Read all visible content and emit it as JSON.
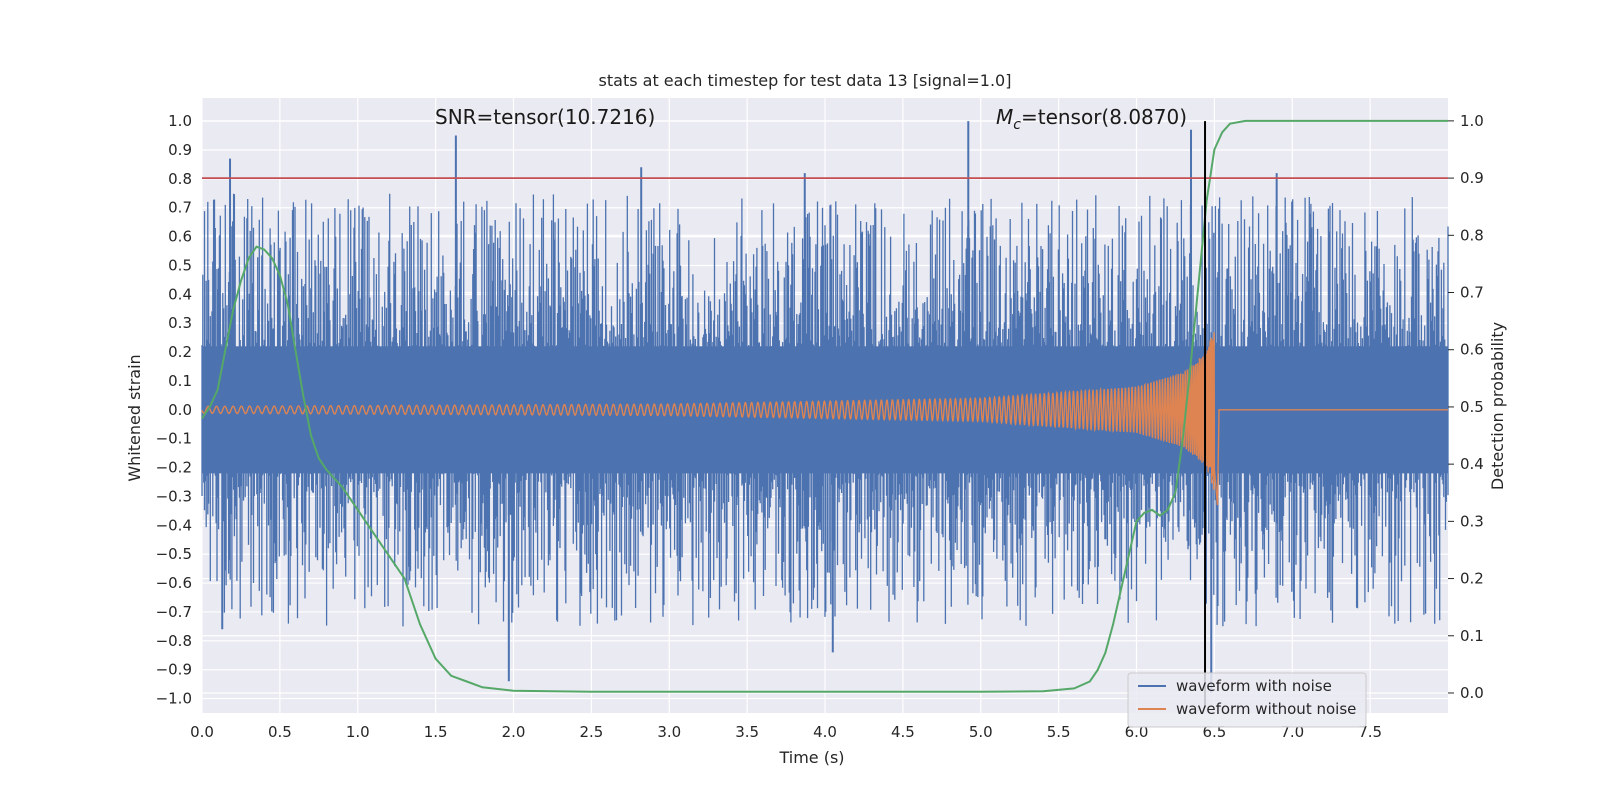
{
  "chart_data": {
    "type": "line",
    "title": "stats at each timestep for test data 13 [signal=1.0]",
    "xlabel": "Time (s)",
    "ylabel": "Whitened strain",
    "y2label": "Detection probability",
    "xlim": [
      0.0,
      8.0
    ],
    "ylim": [
      -1.05,
      1.08
    ],
    "y2lim": [
      -0.035,
      1.04
    ],
    "x_ticks": [
      0.0,
      0.5,
      1.0,
      1.5,
      2.0,
      2.5,
      3.0,
      3.5,
      4.0,
      4.5,
      5.0,
      5.5,
      6.0,
      6.5,
      7.0,
      7.5
    ],
    "x_tick_labels": [
      "0.0",
      "0.5",
      "1.0",
      "1.5",
      "2.0",
      "2.5",
      "3.0",
      "3.5",
      "4.0",
      "4.5",
      "5.0",
      "5.5",
      "6.0",
      "6.5",
      "7.0",
      "7.5"
    ],
    "y_ticks": [
      1.0,
      0.9,
      0.8,
      0.7,
      0.6,
      0.5,
      0.4,
      0.3,
      0.2,
      0.1,
      0.0,
      -0.1,
      -0.2,
      -0.3,
      -0.4,
      -0.5,
      -0.6,
      -0.7,
      -0.8,
      -0.9,
      -1.0
    ],
    "y_tick_labels": [
      "1.0",
      "0.9",
      "0.8",
      "0.7",
      "0.6",
      "0.5",
      "0.4",
      "0.3",
      "0.2",
      "0.1",
      "0.0",
      "−0.1",
      "−0.2",
      "−0.3",
      "−0.4",
      "−0.5",
      "−0.6",
      "−0.7",
      "−0.8",
      "−0.9",
      "−1.0"
    ],
    "y2_ticks": [
      1.0,
      0.9,
      0.8,
      0.7,
      0.6,
      0.5,
      0.4,
      0.3,
      0.2,
      0.1,
      0.0
    ],
    "y2_tick_labels": [
      "1.0",
      "0.9",
      "0.8",
      "0.7",
      "0.6",
      "0.5",
      "0.4",
      "0.3",
      "0.2",
      "0.1",
      "0.0"
    ],
    "grid": true,
    "legend_position": "bottom-right",
    "series": [
      {
        "name": "waveform with noise",
        "color": "#4c72b0",
        "axis": "left",
        "description_values": {
          "duration_s": 8.0,
          "core_band": [
            -0.2,
            0.2
          ],
          "peak_spikes": [
            {
              "x": 0.18,
              "y": 0.87
            },
            {
              "x": 1.63,
              "y": 0.95
            },
            {
              "x": 2.82,
              "y": 0.84
            },
            {
              "x": 3.87,
              "y": 0.82
            },
            {
              "x": 4.92,
              "y": 1.0
            },
            {
              "x": 6.35,
              "y": 0.97
            },
            {
              "x": 6.9,
              "y": 0.82
            },
            {
              "x": 1.97,
              "y": -0.94
            },
            {
              "x": 4.05,
              "y": -0.84
            },
            {
              "x": 0.13,
              "y": -0.76
            },
            {
              "x": 6.48,
              "y": -0.98
            }
          ]
        }
      },
      {
        "name": "waveform without noise",
        "color": "#dd8452",
        "axis": "left",
        "merger_time": 6.5,
        "amplitude_envelope": [
          [
            0.0,
            0.012
          ],
          [
            3.0,
            0.02
          ],
          [
            5.0,
            0.04
          ],
          [
            6.0,
            0.08
          ],
          [
            6.3,
            0.13
          ],
          [
            6.45,
            0.2
          ],
          [
            6.5,
            0.29
          ]
        ]
      },
      {
        "name": "detection probability",
        "color": "#55a868",
        "axis": "right",
        "x": [
          0.0,
          0.05,
          0.1,
          0.15,
          0.2,
          0.25,
          0.3,
          0.35,
          0.4,
          0.45,
          0.5,
          0.55,
          0.6,
          0.65,
          0.7,
          0.75,
          0.8,
          0.9,
          1.0,
          1.1,
          1.2,
          1.3,
          1.4,
          1.5,
          1.6,
          1.7,
          1.8,
          2.0,
          2.5,
          3.0,
          4.0,
          5.0,
          5.4,
          5.6,
          5.7,
          5.75,
          5.8,
          5.85,
          5.9,
          5.95,
          6.0,
          6.05,
          6.1,
          6.15,
          6.2,
          6.25,
          6.3,
          6.35,
          6.4,
          6.45,
          6.5,
          6.55,
          6.6,
          6.7,
          6.8,
          7.0,
          7.5,
          8.0
        ],
        "values": [
          0.48,
          0.5,
          0.53,
          0.6,
          0.67,
          0.72,
          0.76,
          0.78,
          0.775,
          0.76,
          0.73,
          0.68,
          0.6,
          0.52,
          0.45,
          0.41,
          0.39,
          0.36,
          0.32,
          0.28,
          0.24,
          0.2,
          0.12,
          0.06,
          0.03,
          0.02,
          0.01,
          0.004,
          0.002,
          0.002,
          0.002,
          0.002,
          0.003,
          0.008,
          0.02,
          0.04,
          0.07,
          0.12,
          0.18,
          0.24,
          0.3,
          0.315,
          0.32,
          0.31,
          0.32,
          0.35,
          0.45,
          0.58,
          0.72,
          0.86,
          0.95,
          0.98,
          0.995,
          1.0,
          1.0,
          1.0,
          1.0,
          1.0
        ]
      }
    ],
    "threshold": {
      "axis": "right",
      "value": 0.9,
      "color": "#c44e52"
    },
    "vertical_marker": {
      "x": 6.44,
      "color": "#000000"
    },
    "annotations": [
      {
        "text_parts": [
          "SNR=tensor(10.7216)"
        ],
        "x": 1.5,
        "y": 1.0
      },
      {
        "text_parts": [
          "M",
          "c",
          "=tensor(8.0870)"
        ],
        "x": 5.1,
        "y": 1.0
      }
    ]
  }
}
